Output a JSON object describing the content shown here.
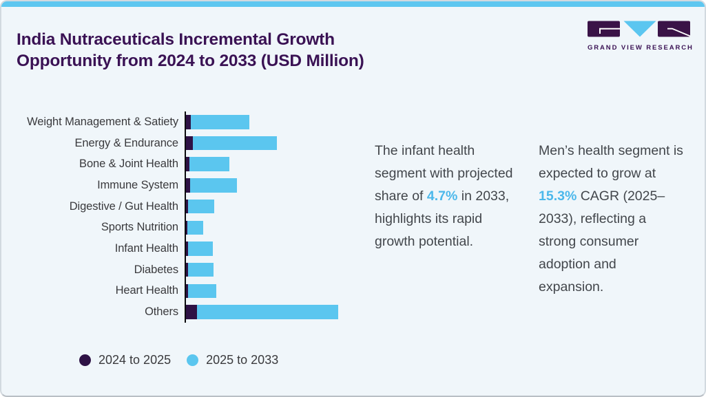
{
  "card": {
    "background": "#f0f6fa",
    "accent_bar_color": "#5ec7f0",
    "border_color": "#d2d9df"
  },
  "header": {
    "title": "India Nutraceuticals Incremental Growth\nOpportunity from 2024 to 2033 (USD Million)",
    "title_color": "#3a1254"
  },
  "logo": {
    "wordmark": "GRAND VIEW RESEARCH",
    "mark_purple": "#3a1347",
    "mark_blue": "#5bc6f0"
  },
  "chart_data": {
    "type": "bar",
    "orientation": "horizontal",
    "stacked": true,
    "title": "India Nutraceuticals Incremental Growth Opportunity from 2024 to 2033 (USD Million)",
    "xlabel": "",
    "ylabel": "",
    "value_axis_labels_shown": false,
    "legend_position": "bottom-left",
    "categories": [
      "Weight Management & Satiety",
      "Energy & Endurance",
      "Bone & Joint Health",
      "Immune System",
      "Digestive / Gut Health",
      "Sports Nutrition",
      "Infant Health",
      "Diabetes",
      "Heart Health",
      "Others"
    ],
    "series": [
      {
        "name": "2024 to 2025",
        "color": "#2e1245",
        "values": [
          7,
          10,
          5,
          6,
          3,
          2,
          3,
          3,
          3,
          16
        ]
      },
      {
        "name": "2025 to 2033",
        "color": "#5bc6ef",
        "values": [
          85,
          122,
          58,
          68,
          38,
          23,
          36,
          37,
          41,
          205
        ]
      }
    ],
    "value_note": "relative incremental growth (axis unlabeled in source)"
  },
  "annotations": [
    {
      "before": "The infant health segment with projected share of ",
      "highlight": "4.7%",
      "after": " in 2033, highlights its rapid growth potential."
    },
    {
      "before": "Men’s health segment is expected to grow at ",
      "highlight": "15.3%",
      "after": " CAGR (2025–2033), reflecting a strong consumer adoption and expansion."
    }
  ],
  "highlight_color": "#4cb8eb"
}
